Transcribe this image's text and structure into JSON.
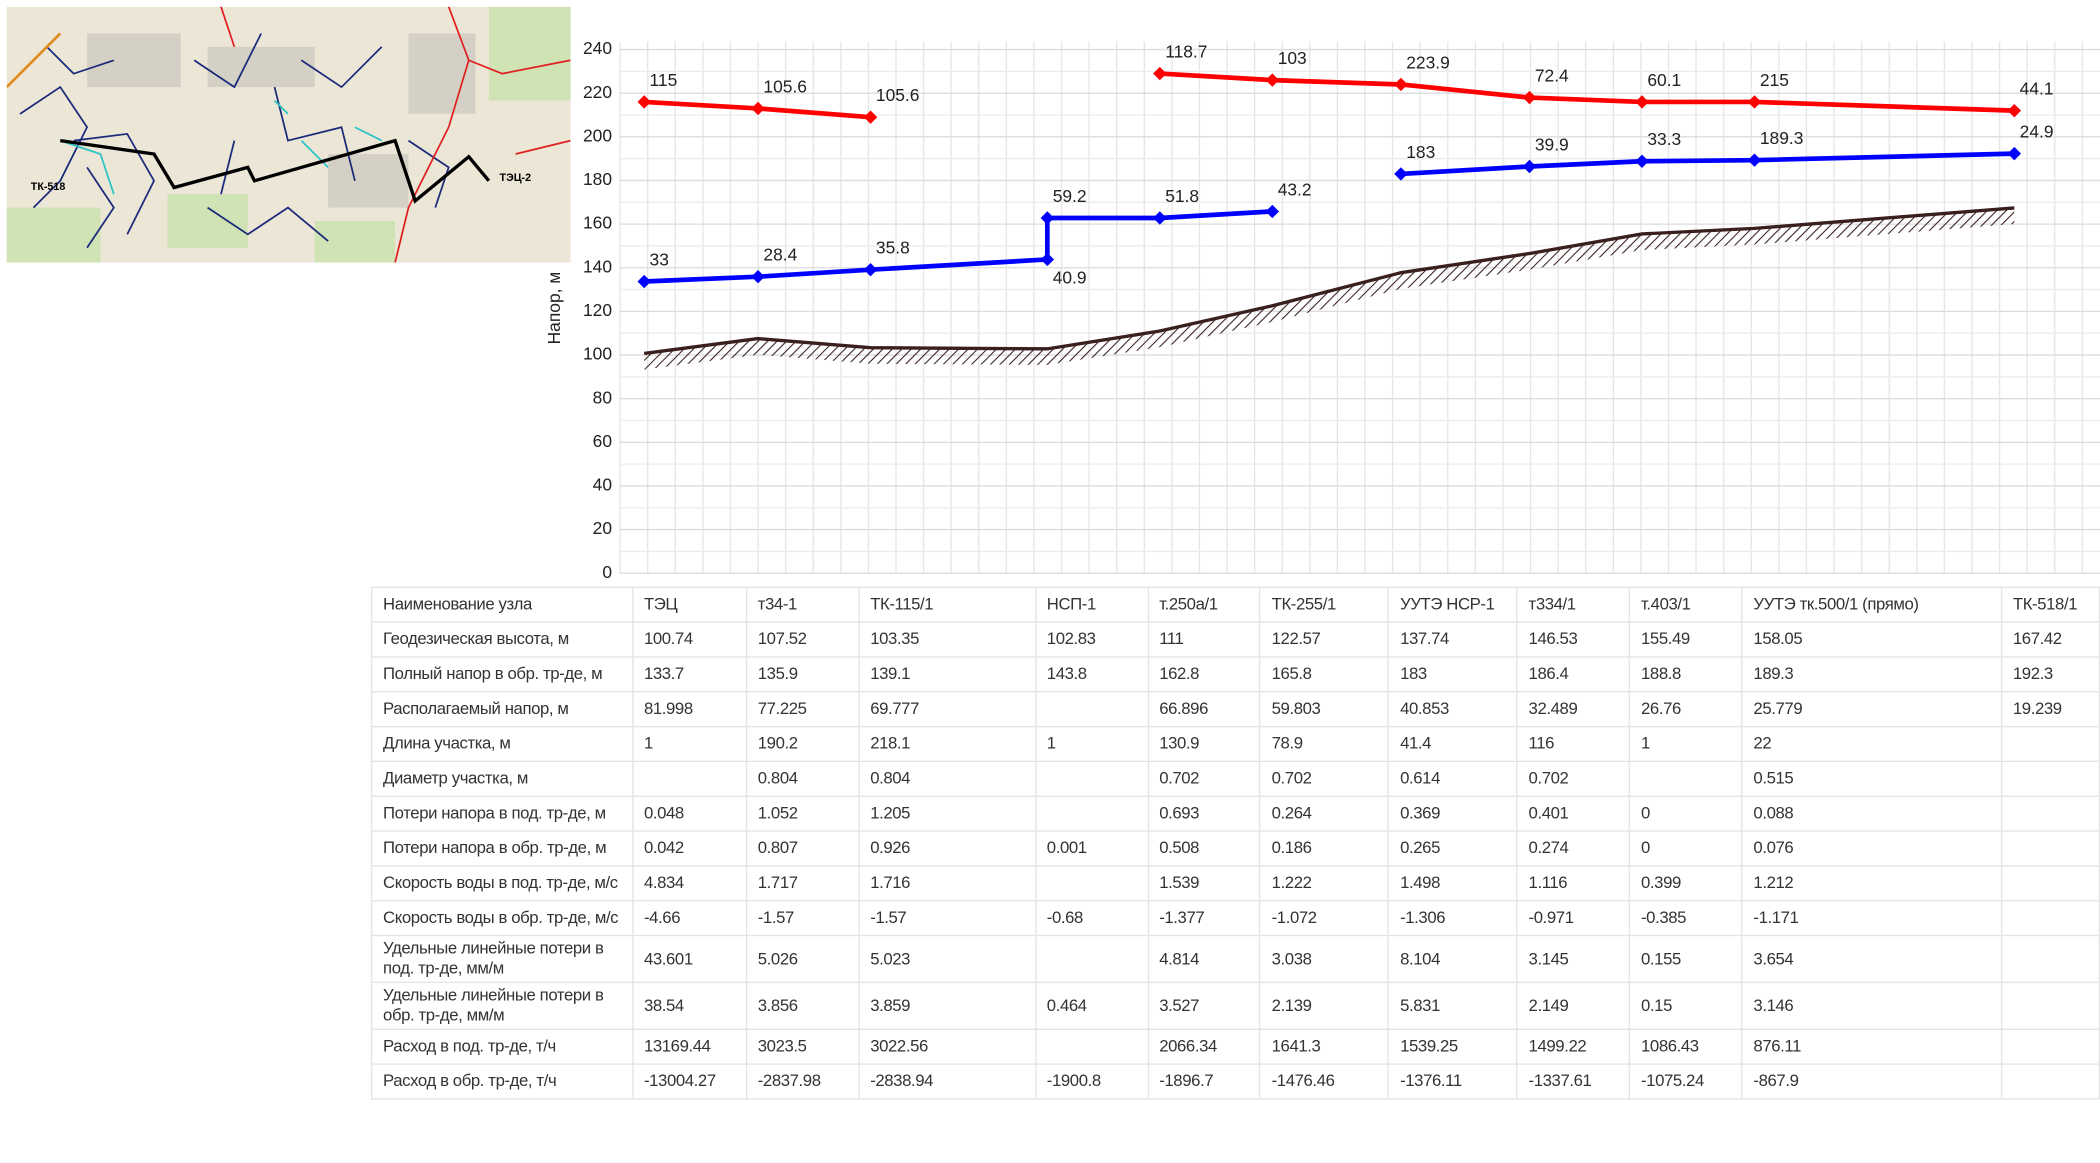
{
  "map": {
    "labels": [
      "ТК-518",
      "ТЭЦ-2"
    ]
  },
  "chart_data": {
    "type": "line",
    "ylabel": "Напор, м",
    "ylim": [
      0,
      240
    ],
    "yticks": [
      0,
      20,
      40,
      60,
      80,
      100,
      120,
      140,
      160,
      180,
      200,
      220,
      240
    ],
    "grid": true,
    "categories": [
      "ТЭЦ",
      "т34-1",
      "ТК-115/1",
      "НСП-1",
      "т.250а/1",
      "ТК-255/1",
      "УУТЭ НСР-1",
      "т334/1",
      "т.403/1",
      "УУТЭ тк.500/1 (прямо)",
      "ТК-518/1"
    ],
    "series": [
      {
        "color": "#ff0000",
        "values": [
          216,
          213,
          209,
          null,
          null,
          null,
          null,
          null,
          null,
          null,
          null
        ],
        "labels": [
          "115",
          "105.6",
          "105.6",
          null,
          null,
          null,
          null,
          null,
          null,
          null,
          null
        ]
      },
      {
        "color": "#ff0000",
        "values": [
          null,
          null,
          null,
          null,
          229,
          226,
          224,
          218,
          216,
          216,
          212
        ],
        "labels": [
          null,
          null,
          null,
          null,
          "118.7",
          "103",
          "223.9",
          "72.4",
          "60.1",
          "215",
          "44.1"
        ]
      },
      {
        "color": "#0000ff",
        "values": [
          133.7,
          135.9,
          139.1,
          143.8,
          null,
          null,
          null,
          null,
          null,
          null,
          null
        ],
        "labels": [
          "33",
          "28.4",
          "35.8",
          "40.9",
          null,
          null,
          null,
          null,
          null,
          null,
          null
        ]
      },
      {
        "color": "#0000ff",
        "values": [
          null,
          null,
          null,
          162.8,
          162.8,
          165.8,
          null,
          null,
          null,
          null,
          null
        ],
        "labels": [
          null,
          null,
          null,
          "59.2",
          "51.8",
          "43.2",
          null,
          null,
          null,
          null,
          null
        ]
      },
      {
        "color": "#0000ff",
        "values": [
          null,
          null,
          null,
          null,
          null,
          null,
          183,
          186.4,
          188.8,
          189.3,
          192.3
        ],
        "labels": [
          null,
          null,
          null,
          null,
          null,
          null,
          "183",
          "39.9",
          "33.3",
          "189.3",
          "24.9"
        ]
      }
    ],
    "ground": {
      "color": "#3a1f1f",
      "values": [
        100.74,
        107.52,
        103.35,
        102.83,
        111,
        122.57,
        137.74,
        146.53,
        155.49,
        158.05,
        167.42
      ]
    }
  },
  "table": {
    "header": "Наименование узла",
    "rows": [
      [
        "Геодезическая высота, м",
        "100.74",
        "107.52",
        "103.35",
        "102.83",
        "111",
        "122.57",
        "137.74",
        "146.53",
        "155.49",
        "158.05",
        "167.42"
      ],
      [
        "Полный напор в обр. тр-де, м",
        "133.7",
        "135.9",
        "139.1",
        "143.8",
        "162.8",
        "165.8",
        "183",
        "186.4",
        "188.8",
        "189.3",
        "192.3"
      ],
      [
        "Располагаемый напор, м",
        "81.998",
        "77.225",
        "69.777",
        null,
        "66.896",
        "59.803",
        "40.853",
        "32.489",
        "26.76",
        "25.779",
        "19.239"
      ],
      [
        "Длина участка, м",
        "1",
        "190.2",
        "218.1",
        "1",
        "130.9",
        "78.9",
        "41.4",
        "116",
        "1",
        "22",
        null
      ],
      [
        "Диаметр участка, м",
        null,
        "0.804",
        "0.804",
        null,
        "0.702",
        "0.702",
        "0.614",
        "0.702",
        null,
        "0.515",
        null
      ],
      [
        "Потери напора в под. тр-де, м",
        "0.048",
        "1.052",
        "1.205",
        null,
        "0.693",
        "0.264",
        "0.369",
        "0.401",
        "0",
        "0.088",
        null
      ],
      [
        "Потери напора в обр. тр-де, м",
        "0.042",
        "0.807",
        "0.926",
        "0.001",
        "0.508",
        "0.186",
        "0.265",
        "0.274",
        "0",
        "0.076",
        null
      ],
      [
        "Скорость воды в под. тр-де, м/с",
        "4.834",
        "1.717",
        "1.716",
        null,
        "1.539",
        "1.222",
        "1.498",
        "1.116",
        "0.399",
        "1.212",
        null
      ],
      [
        "Скорость воды в обр. тр-де, м/с",
        "-4.66",
        "-1.57",
        "-1.57",
        "-0.68",
        "-1.377",
        "-1.072",
        "-1.306",
        "-0.971",
        "-0.385",
        "-1.171",
        null
      ],
      [
        "Удельные линейные потери в под. тр-де, мм/м",
        "43.601",
        "5.026",
        "5.023",
        null,
        "4.814",
        "3.038",
        "8.104",
        "3.145",
        "0.155",
        "3.654",
        null
      ],
      [
        "Удельные линейные потери в обр. тр-де, мм/м",
        "38.54",
        "3.856",
        "3.859",
        "0.464",
        "3.527",
        "2.139",
        "5.831",
        "2.149",
        "0.15",
        "3.146",
        null
      ],
      [
        "Расход в под. тр-де, т/ч",
        "13169.44",
        "3023.5",
        "3022.56",
        null,
        "2066.34",
        "1641.3",
        "1539.25",
        "1499.22",
        "1086.43",
        "876.11",
        null
      ],
      [
        "Расход в обр. тр-де, т/ч",
        "-13004.27",
        "-2837.98",
        "-2838.94",
        "-1900.8",
        "-1896.7",
        "-1476.46",
        "-1376.11",
        "-1337.61",
        "-1075.24",
        "-867.9",
        null
      ]
    ]
  }
}
